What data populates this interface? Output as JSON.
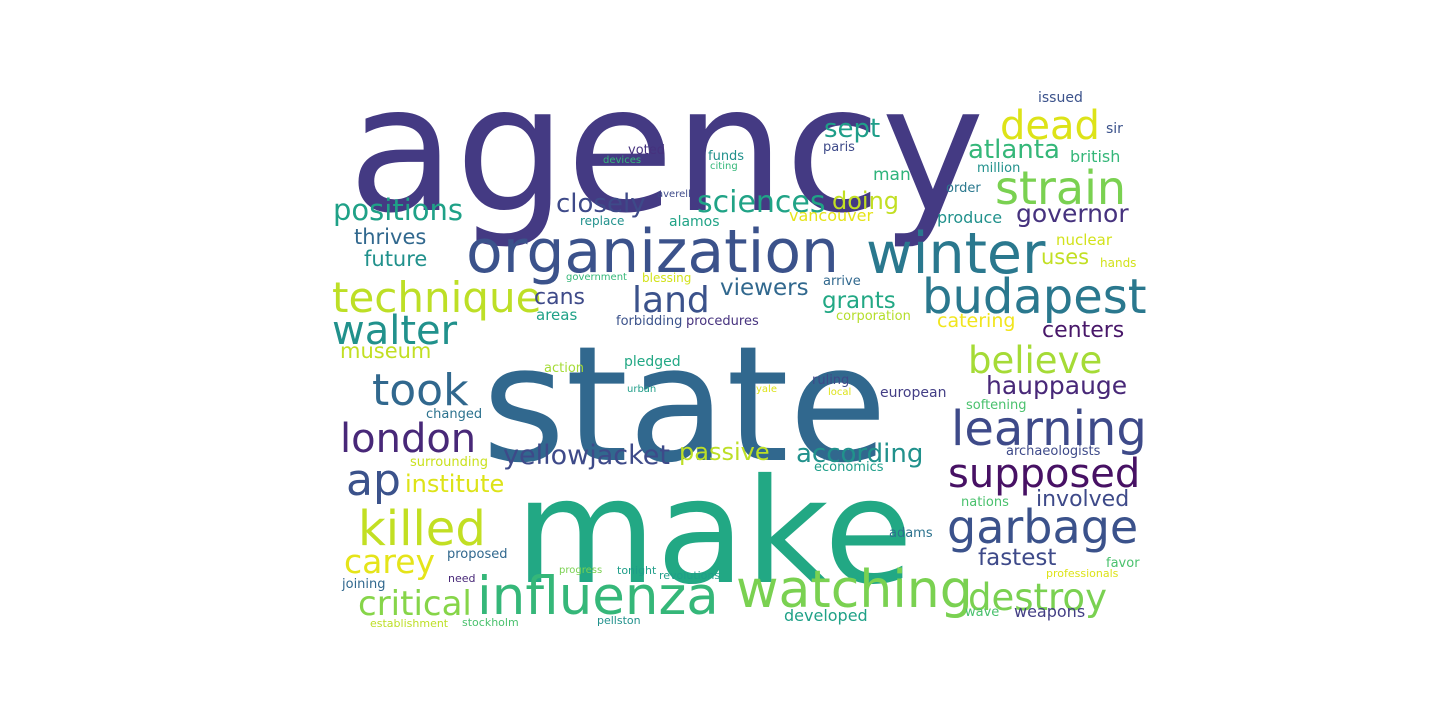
{
  "words": [
    {
      "text": "agency",
      "color": "#443a83"
    },
    {
      "text": "state",
      "color": "#31688e"
    },
    {
      "text": "make",
      "color": "#22a884"
    },
    {
      "text": "organization",
      "color": "#3b528b"
    },
    {
      "text": "winter",
      "color": "#2a788e"
    },
    {
      "text": "influenza",
      "color": "#35b779"
    },
    {
      "text": "watching",
      "color": "#7ad151"
    },
    {
      "text": "budapest",
      "color": "#2a788e"
    },
    {
      "text": "learning",
      "color": "#3e4a89"
    },
    {
      "text": "garbage",
      "color": "#3b528b"
    },
    {
      "text": "strain",
      "color": "#7ad151"
    },
    {
      "text": "technique",
      "color": "#bddf26"
    },
    {
      "text": "walter",
      "color": "#21918c"
    },
    {
      "text": "took",
      "color": "#31688e"
    },
    {
      "text": "london",
      "color": "#482878"
    },
    {
      "text": "ap",
      "color": "#3b528b"
    },
    {
      "text": "killed",
      "color": "#c2df23"
    },
    {
      "text": "supposed",
      "color": "#471164"
    },
    {
      "text": "believe",
      "color": "#a5db36"
    },
    {
      "text": "destroy",
      "color": "#7ad151"
    },
    {
      "text": "dead",
      "color": "#dde318"
    },
    {
      "text": "critical",
      "color": "#86d549"
    },
    {
      "text": "carey",
      "color": "#e5e419"
    },
    {
      "text": "land",
      "color": "#3b528b"
    },
    {
      "text": "positions",
      "color": "#1fa187"
    },
    {
      "text": "sciences",
      "color": "#20a386"
    },
    {
      "text": "yellowjacket",
      "color": "#3e4a89"
    },
    {
      "text": "according",
      "color": "#21918c"
    },
    {
      "text": "closely",
      "color": "#3e4a89"
    },
    {
      "text": "hauppauge",
      "color": "#482878"
    },
    {
      "text": "institute",
      "color": "#dde318"
    },
    {
      "text": "passive",
      "color": "#bddf26"
    },
    {
      "text": "governor",
      "color": "#46327e"
    },
    {
      "text": "atlanta",
      "color": "#35b779"
    },
    {
      "text": "sept",
      "color": "#1f9e89"
    },
    {
      "text": "fastest",
      "color": "#3e4a89"
    },
    {
      "text": "involved",
      "color": "#3e4a89"
    },
    {
      "text": "centers",
      "color": "#481769"
    },
    {
      "text": "doing",
      "color": "#c2df23"
    },
    {
      "text": "viewers",
      "color": "#31688e"
    },
    {
      "text": "grants",
      "color": "#22a884"
    },
    {
      "text": "cans",
      "color": "#3e4a89"
    },
    {
      "text": "thrives",
      "color": "#31688e"
    },
    {
      "text": "future",
      "color": "#21918c"
    },
    {
      "text": "museum",
      "color": "#c2df23"
    },
    {
      "text": "uses",
      "color": "#c2df23"
    },
    {
      "text": "catering",
      "color": "#f1e51d"
    },
    {
      "text": "man",
      "color": "#2fb47c"
    },
    {
      "text": "british",
      "color": "#35b779"
    },
    {
      "text": "produce",
      "color": "#21918c"
    },
    {
      "text": "vancouver",
      "color": "#e5e419"
    },
    {
      "text": "weapons",
      "color": "#433e85"
    },
    {
      "text": "developed",
      "color": "#1fa187"
    },
    {
      "text": "proposed",
      "color": "#31688e"
    },
    {
      "text": "alamos",
      "color": "#20a386"
    },
    {
      "text": "nuclear",
      "color": "#d2e21b"
    },
    {
      "text": "areas",
      "color": "#1fa187"
    },
    {
      "text": "replace",
      "color": "#21918c"
    },
    {
      "text": "voted",
      "color": "#46327e"
    },
    {
      "text": "funds",
      "color": "#21918c"
    },
    {
      "text": "paris",
      "color": "#3e4a89"
    },
    {
      "text": "issued",
      "color": "#3b528b"
    },
    {
      "text": "sir",
      "color": "#3b528b"
    },
    {
      "text": "million",
      "color": "#21918c"
    },
    {
      "text": "order",
      "color": "#2a788e"
    },
    {
      "text": "procedures",
      "color": "#46327e"
    },
    {
      "text": "forbidding",
      "color": "#3b528b"
    },
    {
      "text": "corporation",
      "color": "#b5de2b"
    },
    {
      "text": "pledged",
      "color": "#22a884"
    },
    {
      "text": "action",
      "color": "#a5db36"
    },
    {
      "text": "ruling",
      "color": "#3e4a89"
    },
    {
      "text": "european",
      "color": "#433e85"
    },
    {
      "text": "changed",
      "color": "#2c728e"
    },
    {
      "text": "softening",
      "color": "#4ac16d"
    },
    {
      "text": "archaeologists",
      "color": "#3e4a89"
    },
    {
      "text": "surrounding",
      "color": "#cae11f"
    },
    {
      "text": "economics",
      "color": "#1f9e89"
    },
    {
      "text": "nations",
      "color": "#4ac16d"
    },
    {
      "text": "adams",
      "color": "#2c728e"
    },
    {
      "text": "favor",
      "color": "#4ac16d"
    },
    {
      "text": "joining",
      "color": "#31688e"
    },
    {
      "text": "need",
      "color": "#482878"
    },
    {
      "text": "revolutions",
      "color": "#1f9e89"
    },
    {
      "text": "tonight",
      "color": "#1f9e89"
    },
    {
      "text": "progress",
      "color": "#7ad151"
    },
    {
      "text": "professionals",
      "color": "#dde318"
    },
    {
      "text": "wave",
      "color": "#4ac16d"
    },
    {
      "text": "establishment",
      "color": "#bddf26"
    },
    {
      "text": "stockholm",
      "color": "#4ac16d"
    },
    {
      "text": "pellston",
      "color": "#21918c"
    },
    {
      "text": "arrive",
      "color": "#31688e"
    },
    {
      "text": "blessing",
      "color": "#d2e21b"
    },
    {
      "text": "government",
      "color": "#35b779"
    },
    {
      "text": "hands",
      "color": "#d2e21b"
    },
    {
      "text": "urban",
      "color": "#1f9e89"
    },
    {
      "text": "yale",
      "color": "#dde318"
    },
    {
      "text": "local",
      "color": "#dde318"
    },
    {
      "text": "devices",
      "color": "#35b779"
    },
    {
      "text": "citing",
      "color": "#35b779"
    },
    {
      "text": "averell",
      "color": "#3e4a89"
    }
  ]
}
